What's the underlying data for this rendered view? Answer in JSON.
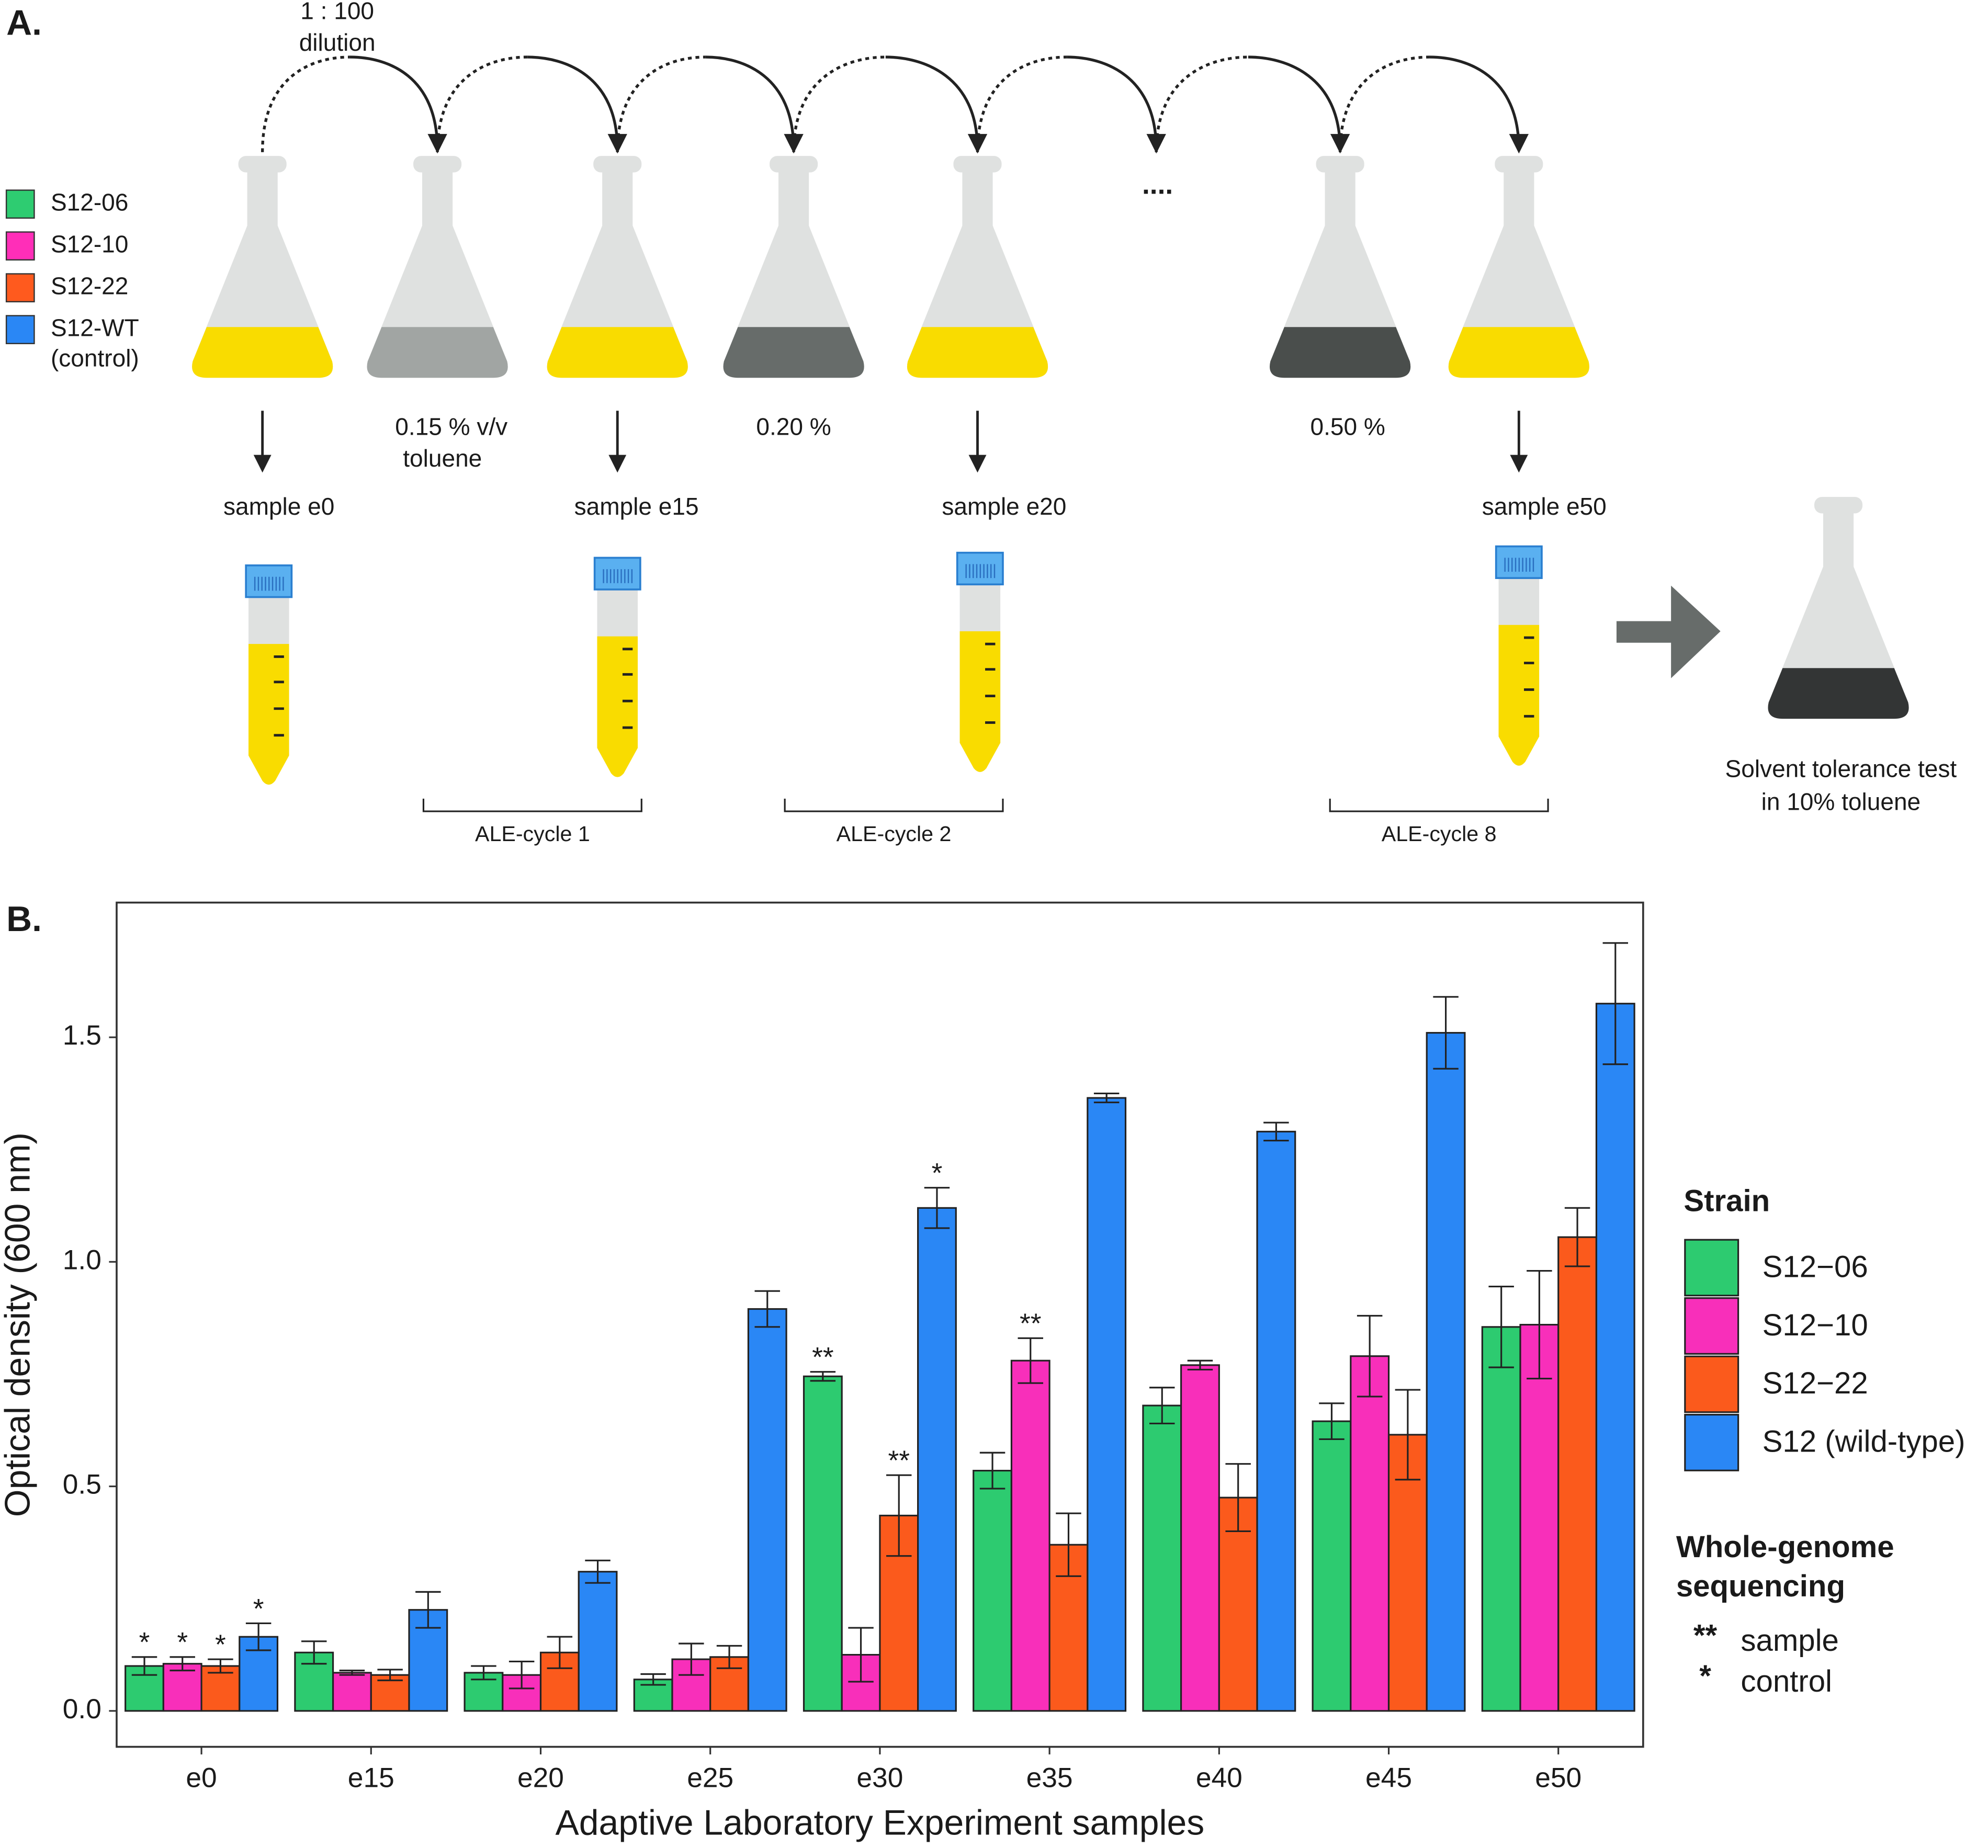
{
  "panel_a": {
    "label": "A.",
    "dilution": [
      "1 : 100",
      "dilution"
    ],
    "legend": [
      {
        "name": "S12-06",
        "color": "#2ecc71"
      },
      {
        "name": "S12-10",
        "color": "#ff2eb8"
      },
      {
        "name": "S12-22",
        "color": "#ff5a1e"
      },
      {
        "name": "S12-WT",
        "note": "(control)",
        "color": "#2a87f5"
      }
    ],
    "concentrations": [
      [
        "0.15 % v/v",
        "toluene"
      ],
      [
        "0.20 %"
      ],
      [
        "0.50 %"
      ]
    ],
    "ellipsis": "....",
    "samples": [
      "sample e0",
      "sample e15",
      "sample e20",
      "sample e50"
    ],
    "cycles": [
      "ALE-cycle 1",
      "ALE-cycle 2",
      "ALE-cycle 8"
    ],
    "test": [
      "Solvent tolerance test",
      "in 10% toluene"
    ]
  },
  "chart_data": {
    "type": "bar",
    "panel_label": "B.",
    "x_label": "Adaptive Laboratory Experiment samples",
    "y_label": "Optical density (600 nm)",
    "categories": [
      "e0",
      "e15",
      "e20",
      "e25",
      "e30",
      "e35",
      "e40",
      "e45",
      "e50"
    ],
    "ylim": [
      -0.08,
      1.8
    ],
    "yticks": [
      {
        "value": 0,
        "label": "0.0"
      },
      0.5,
      {
        "value": 1,
        "label": "1.0"
      },
      1.5
    ],
    "grid": false,
    "legend_title": "Strain",
    "series": [
      {
        "name": "S12−06",
        "color": "#2dcb70",
        "values": [
          0.1,
          0.13,
          0.085,
          0.07,
          0.745,
          0.535,
          0.68,
          0.645,
          0.855
        ],
        "errors": [
          0.02,
          0.025,
          0.015,
          0.012,
          0.01,
          0.04,
          0.04,
          0.04,
          0.09
        ],
        "labels": [
          "*",
          null,
          null,
          null,
          "**",
          null,
          null,
          null,
          null
        ]
      },
      {
        "name": "S12−10",
        "color": "#f82fba",
        "values": [
          0.105,
          0.085,
          0.08,
          0.115,
          0.125,
          0.78,
          0.77,
          0.79,
          0.86
        ],
        "errors": [
          0.015,
          0.005,
          0.03,
          0.035,
          0.06,
          0.05,
          0.01,
          0.09,
          0.12
        ],
        "labels": [
          "*",
          null,
          null,
          null,
          null,
          "**",
          null,
          null,
          null
        ]
      },
      {
        "name": "S12−22",
        "color": "#fb5a1c",
        "values": [
          0.1,
          0.08,
          0.13,
          0.12,
          0.435,
          0.37,
          0.475,
          0.615,
          1.055
        ],
        "errors": [
          0.015,
          0.012,
          0.035,
          0.025,
          0.09,
          0.07,
          0.075,
          0.1,
          0.065
        ],
        "labels": [
          "*",
          null,
          null,
          null,
          "**",
          null,
          null,
          null,
          null
        ]
      },
      {
        "name": "S12 (wild-type)",
        "color": "#2a87f5",
        "values": [
          0.165,
          0.225,
          0.31,
          0.895,
          1.12,
          1.365,
          1.29,
          1.51,
          1.575
        ],
        "errors": [
          0.03,
          0.04,
          0.025,
          0.04,
          0.045,
          0.01,
          0.02,
          0.08,
          0.135
        ],
        "labels": [
          "*",
          null,
          null,
          null,
          "*",
          null,
          null,
          null,
          null
        ]
      }
    ],
    "wgs_legend": {
      "title": [
        "Whole-genome",
        "sequencing"
      ],
      "items": [
        {
          "symbol": "**",
          "text": "sample"
        },
        {
          "symbol": "*",
          "text": "control"
        }
      ]
    }
  }
}
